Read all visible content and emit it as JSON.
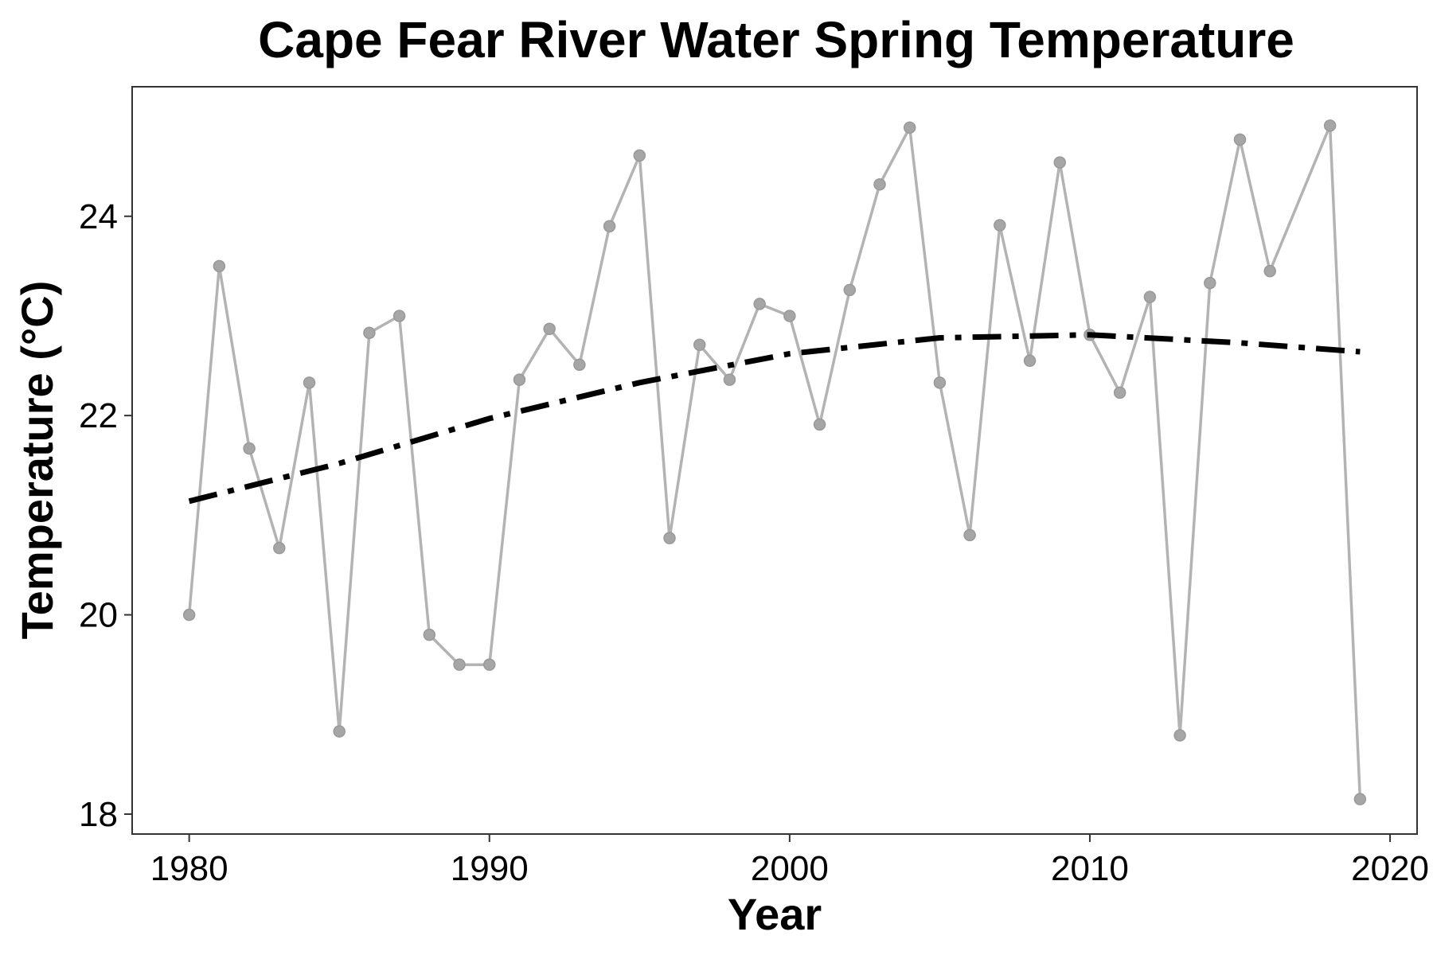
{
  "chart_data": {
    "type": "line",
    "title": "Cape Fear River Water Spring Temperature",
    "xlabel": "Year",
    "ylabel": "Temperature (°C)",
    "xlim": [
      1978.1,
      2020.9
    ],
    "ylim": [
      17.8,
      25.3
    ],
    "x_ticks": [
      1980,
      1990,
      2000,
      2010,
      2020
    ],
    "y_ticks": [
      18,
      20,
      22,
      24
    ],
    "grid": false,
    "legend": "none",
    "colors": {
      "observed": "#b3b3b3",
      "observed_points": "#a6a6a6",
      "trend": "#000000"
    },
    "series": [
      {
        "style": "line-with-points",
        "x": [
          1980,
          1981,
          1982,
          1983,
          1984,
          1985,
          1986,
          1987,
          1988,
          1989,
          1990,
          1991,
          1992,
          1993,
          1994,
          1995,
          1996,
          1997,
          1998,
          1999,
          2000,
          2001,
          2002,
          2003,
          2004,
          2005,
          2006,
          2007,
          2008,
          2009,
          2010,
          2011,
          2012,
          2013,
          2014,
          2015,
          2016,
          2018,
          2019
        ],
        "values": [
          20.0,
          23.5,
          21.67,
          20.67,
          22.33,
          18.83,
          22.83,
          23.0,
          19.8,
          19.5,
          19.5,
          22.36,
          22.87,
          22.51,
          23.9,
          24.61,
          20.77,
          22.71,
          22.36,
          23.12,
          23.0,
          21.91,
          23.26,
          24.32,
          24.89,
          22.33,
          20.8,
          23.91,
          22.55,
          24.54,
          22.81,
          22.23,
          23.19,
          18.79,
          23.33,
          24.77,
          23.45,
          24.91,
          18.15
        ]
      },
      {
        "style": "dashdot-trend",
        "x": [
          1980,
          1985,
          1990,
          1995,
          2000,
          2005,
          2010,
          2015,
          2019
        ],
        "values": [
          21.14,
          21.52,
          21.97,
          22.33,
          22.62,
          22.78,
          22.81,
          22.73,
          22.64
        ]
      }
    ]
  }
}
